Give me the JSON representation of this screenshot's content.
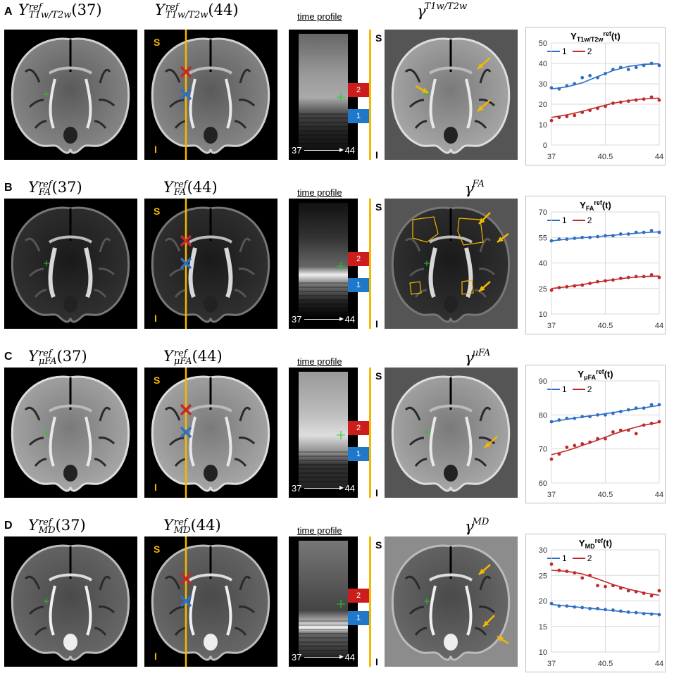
{
  "colors": {
    "blue": "#2e6fc4",
    "red": "#c0292b",
    "yellow": "#f5b800",
    "green": "#22cc22",
    "badge_blue": "#1f78c8",
    "badge_red": "#cc1d1d"
  },
  "rows": [
    {
      "letter": "A",
      "metric_sub": "T1w/T2w",
      "gamma_sup": "T1w/T2w",
      "arg37": "(37)",
      "arg44": "(44)",
      "y_sym": "Y",
      "ref": "ref",
      "gamma_sym": "γ",
      "tp_caption": "time profile",
      "tp_from": "37",
      "tp_to": "44",
      "badge1": "1",
      "badge2": "2",
      "S": "S",
      "I": "I",
      "gamma_bg": "#555555",
      "style": "t1"
    },
    {
      "letter": "B",
      "metric_sub": "FA",
      "gamma_sup": "FA",
      "arg37": "(37)",
      "arg44": "(44)",
      "y_sym": "Y",
      "ref": "ref",
      "gamma_sym": "γ",
      "tp_caption": "time profile",
      "tp_from": "37",
      "tp_to": "44",
      "badge1": "1",
      "badge2": "2",
      "S": "S",
      "I": "I",
      "gamma_bg": "#555555",
      "style": "fa"
    },
    {
      "letter": "C",
      "metric_sub": "μFA",
      "gamma_sup": "μFA",
      "arg37": "(37)",
      "arg44": "(44)",
      "y_sym": "Y",
      "ref": "ref",
      "gamma_sym": "γ",
      "tp_caption": "time profile",
      "tp_from": "37",
      "tp_to": "44",
      "badge1": "1",
      "badge2": "2",
      "S": "S",
      "I": "I",
      "gamma_bg": "#555555",
      "style": "ufa"
    },
    {
      "letter": "D",
      "metric_sub": "MD",
      "gamma_sup": "MD",
      "arg37": "(37)",
      "arg44": "(44)",
      "y_sym": "Y",
      "ref": "ref",
      "gamma_sym": "γ",
      "tp_caption": "time profile",
      "tp_from": "37",
      "tp_to": "44",
      "badge1": "1",
      "badge2": "2",
      "S": "S",
      "I": "I",
      "gamma_bg": "#8c8c8c",
      "style": "md"
    }
  ],
  "chart_data": [
    {
      "type": "scatter",
      "title_main": "Y",
      "title_sub": "T1w/T2w",
      "title_sup": "ref",
      "title_tail": "(t)",
      "x_ticks": [
        "37",
        "40.5",
        "44"
      ],
      "xlim": [
        37,
        44
      ],
      "ylim": [
        0,
        50
      ],
      "y_ticks": [
        "0",
        "10",
        "20",
        "30",
        "40",
        "50"
      ],
      "grid": true,
      "legend": "top-left",
      "series": [
        {
          "name": "1",
          "color": "#2e6fc4",
          "points": [
            [
              37,
              28
            ],
            [
              37.5,
              27.5
            ],
            [
              38,
              29
            ],
            [
              38.5,
              30
            ],
            [
              39,
              33
            ],
            [
              39.5,
              34
            ],
            [
              40,
              33
            ],
            [
              40.5,
              35
            ],
            [
              41,
              37
            ],
            [
              41.5,
              38
            ],
            [
              42,
              37
            ],
            [
              42.5,
              38
            ],
            [
              43,
              39
            ],
            [
              43.5,
              40
            ],
            [
              44,
              39
            ]
          ],
          "fit": [
            [
              37,
              27.5
            ],
            [
              38,
              28.5
            ],
            [
              39,
              30.5
            ],
            [
              40,
              33.5
            ],
            [
              41,
              36.5
            ],
            [
              42,
              38.5
            ],
            [
              43,
              39.5
            ],
            [
              44,
              39.8
            ]
          ]
        },
        {
          "name": "2",
          "color": "#c0292b",
          "points": [
            [
              37,
              12
            ],
            [
              37.5,
              13.5
            ],
            [
              38,
              14
            ],
            [
              38.5,
              14.5
            ],
            [
              39,
              16
            ],
            [
              39.5,
              17
            ],
            [
              40,
              18
            ],
            [
              40.5,
              19
            ],
            [
              41,
              20.5
            ],
            [
              41.5,
              21
            ],
            [
              42,
              21.5
            ],
            [
              42.5,
              22
            ],
            [
              43,
              22.5
            ],
            [
              43.5,
              23.5
            ],
            [
              44,
              22
            ]
          ],
          "fit": [
            [
              37,
              13.5
            ],
            [
              38,
              14.8
            ],
            [
              39,
              16.5
            ],
            [
              40,
              18.5
            ],
            [
              41,
              20.5
            ],
            [
              42,
              21.8
            ],
            [
              43,
              22.6
            ],
            [
              44,
              23
            ]
          ]
        }
      ]
    },
    {
      "type": "scatter",
      "title_main": "Y",
      "title_sub": "FA",
      "title_sup": "ref",
      "title_tail": "(t)",
      "x_ticks": [
        "37",
        "40.5",
        "44"
      ],
      "xlim": [
        37,
        44
      ],
      "ylim": [
        10,
        70
      ],
      "y_ticks": [
        "10",
        "25",
        "40",
        "55",
        "70"
      ],
      "grid": true,
      "legend": "top-left",
      "series": [
        {
          "name": "1",
          "color": "#2e6fc4",
          "points": [
            [
              37,
              53
            ],
            [
              37.5,
              54
            ],
            [
              38,
              54
            ],
            [
              38.5,
              54.5
            ],
            [
              39,
              55
            ],
            [
              39.5,
              55
            ],
            [
              40,
              55.5
            ],
            [
              40.5,
              56
            ],
            [
              41,
              56
            ],
            [
              41.5,
              57
            ],
            [
              42,
              57
            ],
            [
              42.5,
              58
            ],
            [
              43,
              58
            ],
            [
              43.5,
              59
            ],
            [
              44,
              58
            ]
          ],
          "fit": [
            [
              37,
              53
            ],
            [
              38,
              54
            ],
            [
              39,
              54.8
            ],
            [
              40,
              55.5
            ],
            [
              41,
              56.3
            ],
            [
              42,
              57.1
            ],
            [
              43,
              57.8
            ],
            [
              44,
              58.3
            ]
          ]
        },
        {
          "name": "2",
          "color": "#c0292b",
          "points": [
            [
              37,
              24
            ],
            [
              37.5,
              25.5
            ],
            [
              38,
              26
            ],
            [
              38.5,
              26.5
            ],
            [
              39,
              27
            ],
            [
              39.5,
              28
            ],
            [
              40,
              29
            ],
            [
              40.5,
              29.5
            ],
            [
              41,
              30
            ],
            [
              41.5,
              31
            ],
            [
              42,
              31.5
            ],
            [
              42.5,
              32
            ],
            [
              43,
              32
            ],
            [
              43.5,
              33
            ],
            [
              44,
              31.5
            ]
          ],
          "fit": [
            [
              37,
              25
            ],
            [
              38,
              26
            ],
            [
              39,
              27.3
            ],
            [
              40,
              28.8
            ],
            [
              41,
              30.2
            ],
            [
              42,
              31.3
            ],
            [
              43,
              32
            ],
            [
              44,
              32.3
            ]
          ]
        }
      ]
    },
    {
      "type": "scatter",
      "title_main": "Y",
      "title_sub": "μFA",
      "title_sup": "ref",
      "title_tail": "(t)",
      "x_ticks": [
        "37",
        "40.5",
        "44"
      ],
      "xlim": [
        37,
        44
      ],
      "ylim": [
        60,
        90
      ],
      "y_ticks": [
        "60",
        "70",
        "80",
        "90"
      ],
      "grid": true,
      "legend": "top-left",
      "series": [
        {
          "name": "1",
          "color": "#2e6fc4",
          "points": [
            [
              37,
              78
            ],
            [
              37.5,
              78.5
            ],
            [
              38,
              79
            ],
            [
              38.5,
              79
            ],
            [
              39,
              79.5
            ],
            [
              39.5,
              79.5
            ],
            [
              40,
              80
            ],
            [
              40.5,
              80
            ],
            [
              41,
              80.5
            ],
            [
              41.5,
              81
            ],
            [
              42,
              81.5
            ],
            [
              42.5,
              82
            ],
            [
              43,
              82
            ],
            [
              43.5,
              83
            ],
            [
              44,
              83
            ]
          ],
          "fit": [
            [
              37,
              78
            ],
            [
              38,
              78.7
            ],
            [
              39,
              79.4
            ],
            [
              40,
              80
            ],
            [
              41,
              80.7
            ],
            [
              42,
              81.4
            ],
            [
              43,
              82.1
            ],
            [
              44,
              82.8
            ]
          ]
        },
        {
          "name": "2",
          "color": "#c0292b",
          "points": [
            [
              37,
              67
            ],
            [
              37.5,
              68.5
            ],
            [
              38,
              70.5
            ],
            [
              38.5,
              71
            ],
            [
              39,
              71.5
            ],
            [
              39.5,
              72
            ],
            [
              40,
              73
            ],
            [
              40.5,
              73
            ],
            [
              41,
              75
            ],
            [
              41.5,
              75.5
            ],
            [
              42,
              75.5
            ],
            [
              42.5,
              74.5
            ],
            [
              43,
              77
            ],
            [
              43.5,
              77.5
            ],
            [
              44,
              78
            ]
          ],
          "fit": [
            [
              37,
              68.3
            ],
            [
              38,
              69.5
            ],
            [
              39,
              71
            ],
            [
              40,
              72.6
            ],
            [
              41,
              74.3
            ],
            [
              42,
              75.8
            ],
            [
              43,
              77
            ],
            [
              44,
              77.8
            ]
          ]
        }
      ]
    },
    {
      "type": "scatter",
      "title_main": "Y",
      "title_sub": "MD",
      "title_sup": "ref",
      "title_tail": "(t)",
      "x_ticks": [
        "37",
        "40.5",
        "44"
      ],
      "xlim": [
        37,
        44
      ],
      "ylim": [
        10,
        30
      ],
      "y_ticks": [
        "10",
        "15",
        "20",
        "25",
        "30"
      ],
      "grid": true,
      "legend": "top-left",
      "series": [
        {
          "name": "1",
          "color": "#2e6fc4",
          "points": [
            [
              37,
              19.5
            ],
            [
              37.5,
              19
            ],
            [
              38,
              19
            ],
            [
              38.5,
              18.8
            ],
            [
              39,
              18.7
            ],
            [
              39.5,
              18.5
            ],
            [
              40,
              18.5
            ],
            [
              40.5,
              18.3
            ],
            [
              41,
              18.2
            ],
            [
              41.5,
              18
            ],
            [
              42,
              17.8
            ],
            [
              42.5,
              17.7
            ],
            [
              43,
              17.5
            ],
            [
              43.5,
              17.4
            ],
            [
              44,
              17.3
            ]
          ],
          "fit": [
            [
              37,
              19.3
            ],
            [
              38,
              19
            ],
            [
              39,
              18.7
            ],
            [
              40,
              18.4
            ],
            [
              41,
              18.1
            ],
            [
              42,
              17.8
            ],
            [
              43,
              17.6
            ],
            [
              44,
              17.4
            ]
          ]
        },
        {
          "name": "2",
          "color": "#c0292b",
          "points": [
            [
              37,
              27.2
            ],
            [
              37.5,
              26
            ],
            [
              38,
              25.8
            ],
            [
              38.5,
              25.5
            ],
            [
              39,
              24.5
            ],
            [
              39.5,
              25
            ],
            [
              40,
              23
            ],
            [
              40.5,
              22.8
            ],
            [
              41,
              23
            ],
            [
              41.5,
              22.5
            ],
            [
              42,
              22
            ],
            [
              42.5,
              21.8
            ],
            [
              43,
              21.5
            ],
            [
              43.5,
              21
            ],
            [
              44,
              22
            ]
          ],
          "fit": [
            [
              37,
              26
            ],
            [
              38,
              25.8
            ],
            [
              39,
              25.3
            ],
            [
              40,
              24.3
            ],
            [
              41,
              23.2
            ],
            [
              42,
              22.3
            ],
            [
              43,
              21.6
            ],
            [
              44,
              21.1
            ]
          ]
        }
      ]
    }
  ]
}
